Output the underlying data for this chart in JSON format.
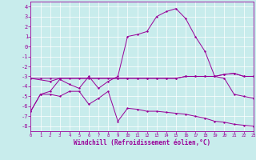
{
  "xlabel": "Windchill (Refroidissement éolien,°C)",
  "background_color": "#c8ecec",
  "grid_color": "#b0d8d8",
  "line_color": "#990099",
  "xlim": [
    0,
    23
  ],
  "ylim": [
    -8.5,
    4.5
  ],
  "yticks": [
    -8,
    -7,
    -6,
    -5,
    -4,
    -3,
    -2,
    -1,
    0,
    1,
    2,
    3,
    4
  ],
  "xticks": [
    0,
    1,
    2,
    3,
    4,
    5,
    6,
    7,
    8,
    9,
    10,
    11,
    12,
    13,
    14,
    15,
    16,
    17,
    18,
    19,
    20,
    21,
    22,
    23
  ],
  "line1_x": [
    0,
    1,
    2,
    3,
    4,
    5,
    6,
    7,
    8,
    9,
    10,
    11,
    12,
    13,
    14,
    15,
    16,
    17,
    18,
    19,
    20,
    21,
    22,
    23
  ],
  "line1_y": [
    -6.5,
    -4.8,
    -4.8,
    -5.0,
    -4.5,
    -4.5,
    -5.8,
    -5.2,
    -4.5,
    -7.5,
    -6.2,
    -6.3,
    -6.5,
    -6.5,
    -6.6,
    -6.7,
    -6.8,
    -7.0,
    -7.2,
    -7.5,
    -7.6,
    -7.8,
    -7.9,
    -8.0
  ],
  "line2_x": [
    0,
    1,
    2,
    3,
    4,
    5,
    6,
    7,
    8,
    9,
    10,
    11,
    12,
    13,
    14,
    15,
    16,
    17,
    18,
    19,
    20,
    21,
    22,
    23
  ],
  "line2_y": [
    -3.2,
    -3.2,
    -3.2,
    -3.2,
    -3.2,
    -3.2,
    -3.2,
    -3.2,
    -3.2,
    -3.2,
    -3.2,
    -3.2,
    -3.2,
    -3.2,
    -3.2,
    -3.2,
    -3.0,
    -3.0,
    -3.0,
    -3.0,
    -2.8,
    -2.7,
    -3.0,
    -3.0
  ],
  "line3_x": [
    0,
    2,
    3,
    9,
    10,
    11,
    12,
    13,
    14,
    15,
    16,
    17,
    18,
    19,
    20,
    21,
    22,
    23
  ],
  "line3_y": [
    -3.2,
    -3.5,
    -3.2,
    -3.2,
    -3.2,
    -3.2,
    -3.2,
    -3.2,
    -3.2,
    -3.2,
    -3.0,
    -3.0,
    -3.0,
    -3.0,
    -2.8,
    -2.7,
    -3.0,
    -3.0
  ],
  "line4_x": [
    0,
    1,
    2,
    3,
    4,
    5,
    6,
    7,
    8,
    9,
    10,
    11,
    12,
    13,
    14,
    15,
    16,
    17,
    18,
    19,
    20,
    21,
    22,
    23
  ],
  "line4_y": [
    -6.5,
    -4.8,
    -4.5,
    -3.3,
    -3.8,
    -4.2,
    -3.0,
    -4.2,
    -3.5,
    -3.0,
    1.0,
    1.2,
    1.5,
    3.0,
    3.5,
    3.8,
    2.8,
    1.0,
    -0.5,
    -3.0,
    -3.2,
    -4.8,
    -5.0,
    -5.2
  ]
}
